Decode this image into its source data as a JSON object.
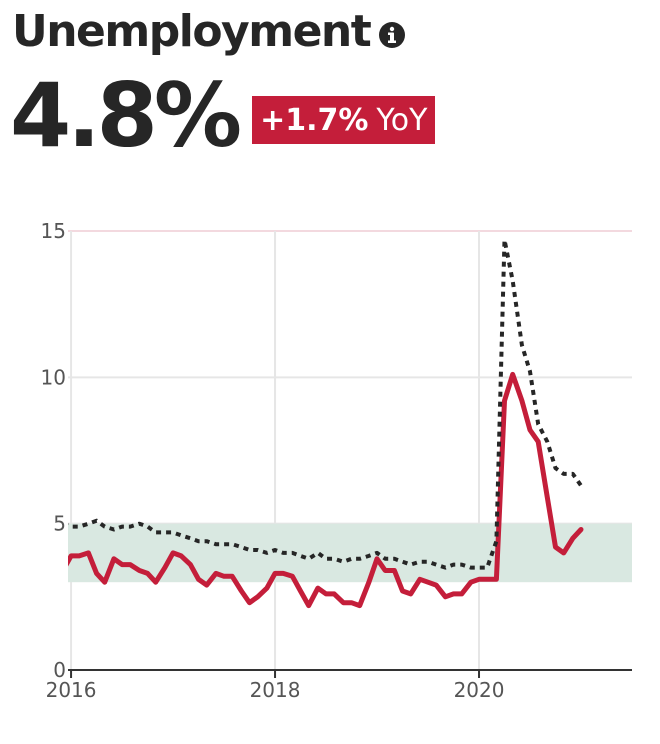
{
  "header": {
    "title": "Unemployment",
    "info_icon": "info-icon",
    "value": "4.8%",
    "change": "+1.7%",
    "change_period": "YoY",
    "badge_color": "#c41e3a"
  },
  "chart_data": {
    "type": "line",
    "xlim": [
      2015.97,
      2021.5
    ],
    "ylim": [
      0,
      15
    ],
    "x_ticks": [
      2016,
      2018,
      2020
    ],
    "x_tick_labels": [
      "2016",
      "2018",
      "2020"
    ],
    "y_ticks": [
      0,
      5,
      10,
      15
    ],
    "y_tick_labels": [
      "0",
      "5",
      "10",
      "15"
    ],
    "grid": true,
    "legend": "none",
    "band": {
      "y0": 3,
      "y1": 5,
      "color": "#d9e8e1"
    },
    "series": [
      {
        "style": "solid",
        "color": "#c41e3a",
        "x": [
          2015.83,
          2015.92,
          2016.0,
          2016.08,
          2016.17,
          2016.25,
          2016.33,
          2016.42,
          2016.5,
          2016.58,
          2016.67,
          2016.75,
          2016.83,
          2016.92,
          2017.0,
          2017.08,
          2017.17,
          2017.25,
          2017.33,
          2017.42,
          2017.5,
          2017.58,
          2017.67,
          2017.75,
          2017.83,
          2017.92,
          2018.0,
          2018.08,
          2018.17,
          2018.25,
          2018.33,
          2018.42,
          2018.5,
          2018.58,
          2018.67,
          2018.75,
          2018.83,
          2018.92,
          2019.0,
          2019.08,
          2019.17,
          2019.25,
          2019.33,
          2019.42,
          2019.5,
          2019.58,
          2019.67,
          2019.75,
          2019.83,
          2019.92,
          2020.0,
          2020.08,
          2020.17,
          2020.25,
          2020.33,
          2020.42,
          2020.5,
          2020.58,
          2020.67,
          2020.75,
          2020.83,
          2020.92,
          2021.0
        ],
        "y": [
          2.9,
          3.4,
          3.9,
          3.9,
          4.0,
          3.3,
          3.0,
          3.8,
          3.6,
          3.6,
          3.4,
          3.3,
          3.0,
          3.5,
          4.0,
          3.9,
          3.6,
          3.1,
          2.9,
          3.3,
          3.2,
          3.2,
          2.7,
          2.3,
          2.5,
          2.8,
          3.3,
          3.3,
          3.2,
          2.7,
          2.2,
          2.8,
          2.6,
          2.6,
          2.3,
          2.3,
          2.2,
          3.0,
          3.8,
          3.4,
          3.4,
          2.7,
          2.6,
          3.1,
          3.0,
          2.9,
          2.5,
          2.6,
          2.6,
          3.0,
          3.1,
          3.1,
          3.1,
          9.2,
          10.1,
          9.2,
          8.2,
          7.8,
          5.9,
          4.2,
          4.0,
          4.5,
          4.8
        ]
      },
      {
        "style": "dotted",
        "color": "#262626",
        "x": [
          2015.83,
          2015.92,
          2016.0,
          2016.08,
          2016.17,
          2016.25,
          2016.33,
          2016.42,
          2016.5,
          2016.58,
          2016.67,
          2016.75,
          2016.83,
          2016.92,
          2017.0,
          2017.08,
          2017.17,
          2017.25,
          2017.33,
          2017.42,
          2017.5,
          2017.58,
          2017.67,
          2017.75,
          2017.83,
          2017.92,
          2018.0,
          2018.08,
          2018.17,
          2018.25,
          2018.33,
          2018.42,
          2018.5,
          2018.58,
          2018.67,
          2018.75,
          2018.83,
          2018.92,
          2019.0,
          2019.08,
          2019.17,
          2019.25,
          2019.33,
          2019.42,
          2019.5,
          2019.58,
          2019.67,
          2019.75,
          2019.83,
          2019.92,
          2020.0,
          2020.08,
          2020.17,
          2020.25,
          2020.33,
          2020.42,
          2020.5,
          2020.58,
          2020.67,
          2020.75,
          2020.83,
          2020.92,
          2021.0
        ],
        "y": [
          5.1,
          5.0,
          4.9,
          4.9,
          5.0,
          5.1,
          4.9,
          4.8,
          4.9,
          4.9,
          5.0,
          4.9,
          4.7,
          4.7,
          4.7,
          4.6,
          4.5,
          4.4,
          4.4,
          4.3,
          4.3,
          4.3,
          4.2,
          4.1,
          4.1,
          4.0,
          4.1,
          4.0,
          4.0,
          3.9,
          3.8,
          4.0,
          3.8,
          3.8,
          3.7,
          3.8,
          3.8,
          3.9,
          4.0,
          3.8,
          3.8,
          3.7,
          3.6,
          3.7,
          3.7,
          3.6,
          3.5,
          3.6,
          3.6,
          3.5,
          3.5,
          3.5,
          4.4,
          14.7,
          13.3,
          11.1,
          10.2,
          8.4,
          7.8,
          6.9,
          6.7,
          6.7,
          6.3
        ]
      }
    ]
  }
}
